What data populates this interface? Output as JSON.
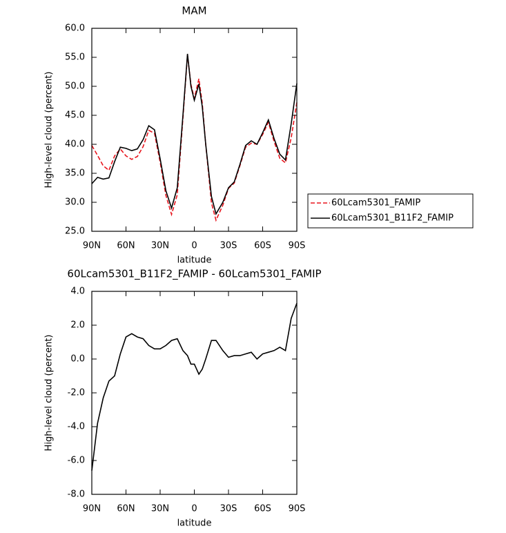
{
  "chart_data": [
    {
      "type": "line",
      "title": "MAM",
      "xlabel": "latitude",
      "ylabel": "High-level cloud (percent)",
      "x": [
        90,
        85,
        80,
        75,
        70,
        65,
        60,
        55,
        50,
        45,
        40,
        35,
        30,
        25,
        20,
        15,
        10,
        6,
        3,
        0,
        -4,
        -7,
        -10,
        -15,
        -19,
        -25,
        -30,
        -35,
        -40,
        -45,
        -50,
        -55,
        -60,
        -65,
        -70,
        -75,
        -80,
        -85,
        -90
      ],
      "series": [
        {
          "name": "60Lcam5301_FAMIP",
          "color": "#e8141c",
          "dash": true,
          "values": [
            39.8,
            38.1,
            36.3,
            35.5,
            38.0,
            39.2,
            38.0,
            37.4,
            37.9,
            39.6,
            42.4,
            41.9,
            36.9,
            31.2,
            27.9,
            31.3,
            44.5,
            55.4,
            50.3,
            47.9,
            51.3,
            47.1,
            40.0,
            29.9,
            26.9,
            29.5,
            32.4,
            33.3,
            36.3,
            39.5,
            40.2,
            40.0,
            41.7,
            43.8,
            40.5,
            37.6,
            36.8,
            41.1,
            47.2
          ]
        },
        {
          "name": "60Lcam5301_B11F2_FAMIP",
          "color": "#000000",
          "dash": false,
          "values": [
            33.2,
            34.3,
            34.0,
            34.2,
            37.0,
            39.5,
            39.3,
            38.9,
            39.2,
            40.8,
            43.2,
            42.5,
            37.5,
            32.0,
            29.0,
            32.5,
            45.0,
            55.6,
            50.0,
            47.6,
            50.4,
            46.5,
            40.0,
            31.0,
            28.0,
            30.0,
            32.5,
            33.5,
            36.5,
            39.8,
            40.6,
            40.0,
            42.0,
            44.2,
            41.0,
            38.3,
            37.3,
            43.5,
            50.5
          ]
        }
      ],
      "xlim": [
        90,
        -90
      ],
      "xticks": [
        {
          "value": 90,
          "label": "90N"
        },
        {
          "value": 60,
          "label": "60N"
        },
        {
          "value": 30,
          "label": "30N"
        },
        0,
        {
          "value": -30,
          "label": "30S"
        },
        {
          "value": -60,
          "label": "60S"
        },
        {
          "value": -90,
          "label": "90S"
        }
      ],
      "ylim": [
        25,
        60
      ],
      "yticks": [
        {
          "value": 25,
          "label": "25.0"
        },
        {
          "value": 30,
          "label": "30.0"
        },
        {
          "value": 35,
          "label": "35.0"
        },
        {
          "value": 40,
          "label": "40.0"
        },
        {
          "value": 45,
          "label": "45.0"
        },
        {
          "value": 50,
          "label": "50.0"
        },
        {
          "value": 55,
          "label": "55.0"
        },
        {
          "value": 60,
          "label": "60.0"
        }
      ],
      "legend": "outside-right"
    },
    {
      "type": "line",
      "title": "60Lcam5301_B11F2_FAMIP - 60Lcam5301_FAMIP",
      "xlabel": "latitude",
      "ylabel": "High-level cloud (percent)",
      "x": [
        90,
        85,
        80,
        75,
        70,
        65,
        60,
        55,
        50,
        45,
        40,
        35,
        30,
        25,
        20,
        15,
        10,
        6,
        3,
        0,
        -4,
        -7,
        -10,
        -15,
        -19,
        -25,
        -30,
        -35,
        -40,
        -45,
        -50,
        -55,
        -60,
        -65,
        -70,
        -75,
        -80,
        -85,
        -90
      ],
      "series": [
        {
          "color": "#000000",
          "dash": false,
          "values": [
            -6.6,
            -3.8,
            -2.3,
            -1.3,
            -1.0,
            0.3,
            1.3,
            1.5,
            1.3,
            1.2,
            0.8,
            0.6,
            0.6,
            0.8,
            1.1,
            1.2,
            0.5,
            0.2,
            -0.3,
            -0.3,
            -0.9,
            -0.6,
            0.0,
            1.1,
            1.1,
            0.5,
            0.1,
            0.2,
            0.2,
            0.3,
            0.4,
            0.0,
            0.3,
            0.4,
            0.5,
            0.7,
            0.5,
            2.4,
            3.3
          ]
        }
      ],
      "xlim": [
        90,
        -90
      ],
      "xticks": [
        {
          "value": 90,
          "label": "90N"
        },
        {
          "value": 60,
          "label": "60N"
        },
        {
          "value": 30,
          "label": "30N"
        },
        0,
        {
          "value": -30,
          "label": "30S"
        },
        {
          "value": -60,
          "label": "60S"
        },
        {
          "value": -90,
          "label": "90S"
        }
      ],
      "ylim": [
        -8,
        4
      ],
      "yticks": [
        {
          "value": -8,
          "label": "-8.0"
        },
        {
          "value": -6,
          "label": "-6.0"
        },
        {
          "value": -4,
          "label": "-4.0"
        },
        {
          "value": -2,
          "label": "-2.0"
        },
        {
          "value": 0,
          "label": "0.0"
        },
        {
          "value": 2,
          "label": "2.0"
        },
        {
          "value": 4,
          "label": "4.0"
        }
      ]
    }
  ]
}
